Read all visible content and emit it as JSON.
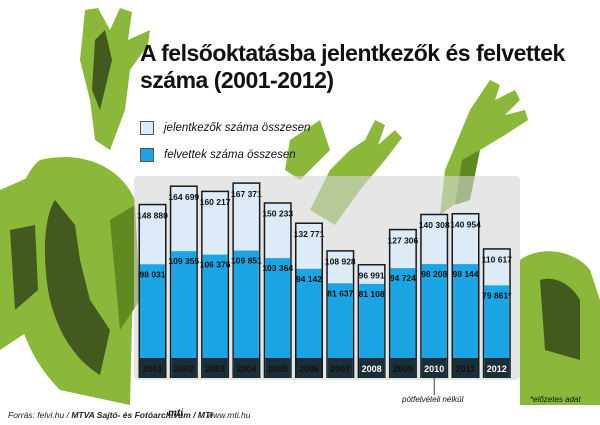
{
  "title_line1": "A felsőoktatásba jelentkezők és felvettek",
  "title_line2": "száma (2001-2012)",
  "legend": {
    "applicants": "jelentkezők száma összesen",
    "admitted": "felvettek száma összesen"
  },
  "colors": {
    "applicants": "#dcebf7",
    "admitted": "#1ba5e4",
    "year_bar_dark": "#1a1a1a",
    "photo_green": "#8bb83a"
  },
  "footer": {
    "source": "Forrás: felvi.hu / ",
    "archive": "MTVA Sajtó- és Fotóarchívum / MTI",
    "logo": "mti",
    "url": "www.mti.hu"
  },
  "notes": {
    "no_supplementary": "pótfelvételi nélkül",
    "preliminary": "*előzetes adat"
  },
  "chart_data": {
    "type": "bar",
    "title": "A felsőoktatásba jelentkezők és felvettek száma (2001-2012)",
    "categories": [
      "2001",
      "2002",
      "2003",
      "2004",
      "2005",
      "2006",
      "2007",
      "2008",
      "2009",
      "2010",
      "2011",
      "2012"
    ],
    "series": [
      {
        "name": "jelentkezők száma összesen",
        "values": [
          148880,
          164699,
          160217,
          167371,
          150233,
          132771,
          108928,
          96991,
          127306,
          140308,
          140954,
          110617
        ],
        "labels": [
          "148 880",
          "164 699",
          "160 217",
          "167 371",
          "150 233",
          "132 771",
          "108 928",
          "96 991",
          "127 306",
          "140 308",
          "140 954",
          "110 617"
        ]
      },
      {
        "name": "felvettek száma összesen",
        "values": [
          98031,
          109355,
          106376,
          109851,
          103364,
          94142,
          81637,
          81108,
          94724,
          98208,
          98144,
          79861
        ],
        "labels": [
          "98 031",
          "109 355",
          "106 376",
          "109 851",
          "103 364",
          "94 142",
          "81 637",
          "81 108",
          "94 724",
          "98 208",
          "98 144",
          "79 861*"
        ]
      }
    ],
    "ylim": [
      0,
      170000
    ],
    "grid": false,
    "legend_position": "top-left",
    "annotations": [
      "pótfelvételi nélkül",
      "*előzetes adat"
    ]
  }
}
